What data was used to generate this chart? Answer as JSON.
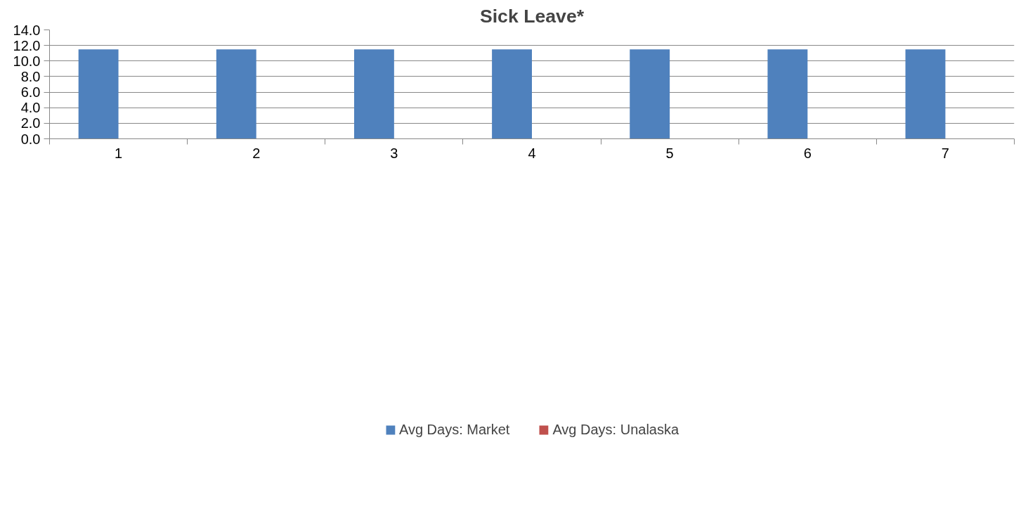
{
  "chart_data": {
    "type": "bar",
    "title": "Sick Leave*",
    "categories": [
      "1",
      "2",
      "3",
      "4",
      "5",
      "6",
      "7"
    ],
    "series": [
      {
        "name": "Avg Days: Market",
        "color": "#4f81bd",
        "values": [
          11.5,
          11.5,
          11.5,
          11.5,
          11.5,
          11.5,
          11.5
        ]
      },
      {
        "name": "Avg Days: Unalaska",
        "color": "#c0504d",
        "values": [
          null,
          null,
          null,
          null,
          null,
          null,
          null
        ]
      }
    ],
    "ylim": [
      0,
      14
    ],
    "yticks": [
      {
        "value": 0,
        "label": "0.0"
      },
      {
        "value": 2,
        "label": "2.0"
      },
      {
        "value": 4,
        "label": "4.0"
      },
      {
        "value": 6,
        "label": "6.0"
      },
      {
        "value": 8,
        "label": "8.0"
      },
      {
        "value": 10,
        "label": "10.0"
      },
      {
        "value": 12,
        "label": "12.0"
      },
      {
        "value": 14,
        "label": "14.0"
      }
    ],
    "grid": "y",
    "legend": "bottom"
  }
}
